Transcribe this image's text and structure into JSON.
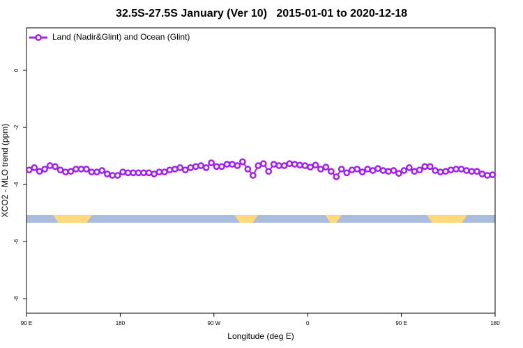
{
  "chart_data": {
    "type": "line",
    "title": "32.5S-27.5S January (Ver 10)   2015-01-01 to 2020-12-18",
    "x_label": "Longitude (deg E)",
    "y_label": "XCO2 - MLO trend (ppm)",
    "xlim": [
      90,
      540
    ],
    "ylim": [
      -8.51,
      1.49
    ],
    "xticks": [
      {
        "value": 90,
        "label": "90 E"
      },
      180,
      {
        "value": 270,
        "label": "90 W"
      },
      {
        "value": 360,
        "label": "0"
      },
      {
        "value": 450,
        "label": "90 E"
      },
      {
        "value": 540,
        "label": "180"
      }
    ],
    "yticks": [
      0,
      -2,
      -4,
      -6,
      -8
    ],
    "grid": false,
    "legend": "top-left",
    "x": [
      92.5,
      97.5,
      102.5,
      107.5,
      112.5,
      117.5,
      122.5,
      127.5,
      132.5,
      137.5,
      142.5,
      147.5,
      152.5,
      157.5,
      162.5,
      167.5,
      172.5,
      177.5,
      182.5,
      187.5,
      192.5,
      197.5,
      202.5,
      207.5,
      212.5,
      217.5,
      222.5,
      227.5,
      232.5,
      237.5,
      242.5,
      247.5,
      252.5,
      257.5,
      262.5,
      267.5,
      272.5,
      277.5,
      282.5,
      287.5,
      292.5,
      297.5,
      302.5,
      307.5,
      312.5,
      317.5,
      322.5,
      327.5,
      332.5,
      337.5,
      342.5,
      347.5,
      352.5,
      357.5,
      362.5,
      367.5,
      372.5,
      377.5,
      382.5,
      387.5,
      392.5,
      397.5,
      402.5,
      407.5,
      412.5,
      417.5,
      422.5,
      427.5,
      432.5,
      437.5,
      442.5,
      447.5,
      452.5,
      457.5,
      462.5,
      467.5,
      472.5,
      477.5,
      482.5,
      487.5,
      492.5,
      497.5,
      502.5,
      507.5,
      512.5,
      517.5,
      522.5,
      527.5,
      532.5,
      537.5
    ],
    "series": [
      {
        "name": "Land (Nadir&Glint) and Ocean (Glint)",
        "color": "#a020f0",
        "values": [
          -3.49,
          -3.41,
          -3.54,
          -3.46,
          -3.34,
          -3.37,
          -3.49,
          -3.56,
          -3.54,
          -3.46,
          -3.46,
          -3.46,
          -3.56,
          -3.56,
          -3.51,
          -3.63,
          -3.68,
          -3.68,
          -3.56,
          -3.59,
          -3.59,
          -3.59,
          -3.59,
          -3.59,
          -3.63,
          -3.56,
          -3.56,
          -3.49,
          -3.46,
          -3.41,
          -3.49,
          -3.41,
          -3.37,
          -3.34,
          -3.41,
          -3.24,
          -3.37,
          -3.37,
          -3.29,
          -3.29,
          -3.34,
          -3.2,
          -3.46,
          -3.68,
          -3.34,
          -3.27,
          -3.54,
          -3.29,
          -3.34,
          -3.34,
          -3.27,
          -3.29,
          -3.32,
          -3.34,
          -3.39,
          -3.32,
          -3.46,
          -3.39,
          -3.54,
          -3.73,
          -3.46,
          -3.59,
          -3.49,
          -3.46,
          -3.56,
          -3.46,
          -3.51,
          -3.44,
          -3.51,
          -3.54,
          -3.51,
          -3.61,
          -3.51,
          -3.41,
          -3.54,
          -3.49,
          -3.37,
          -3.37,
          -3.51,
          -3.56,
          -3.54,
          -3.49,
          -3.46,
          -3.46,
          -3.51,
          -3.54,
          -3.54,
          -3.63,
          -3.68,
          -3.66
        ]
      }
    ]
  }
}
